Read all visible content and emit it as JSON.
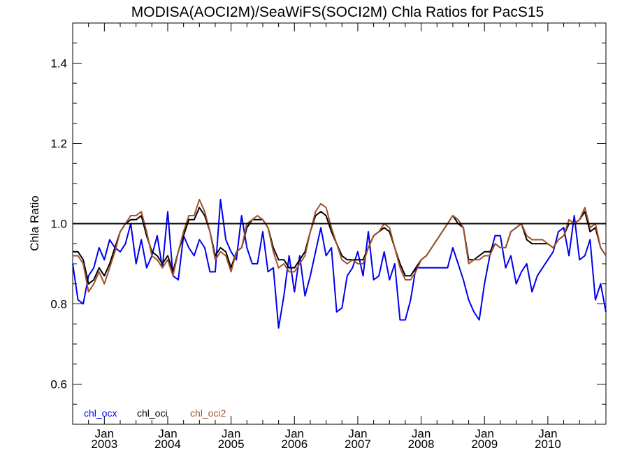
{
  "chart_data": {
    "type": "line",
    "title": "MODISA(AOCI2M)/SeaWiFS(SOCI2M)  Chla Ratios for PacS15",
    "xlabel": "",
    "ylabel": "Chla Ratio",
    "xlim": [
      "2002-07-01",
      "2010-12-01"
    ],
    "ylim": [
      0.5,
      1.5
    ],
    "yticks": [
      0.6,
      0.8,
      1.0,
      1.2,
      1.4
    ],
    "ytick_labels": [
      "0.6",
      "0.8",
      "1.0",
      "1.2",
      "1.4"
    ],
    "xtick_dates": [
      "2003-01-01",
      "2004-01-01",
      "2005-01-01",
      "2006-01-01",
      "2007-01-01",
      "2008-01-01",
      "2009-01-01",
      "2010-01-01"
    ],
    "xtick_labels_top": [
      "Jan",
      "Jan",
      "Jan",
      "Jan",
      "Jan",
      "Jan",
      "Jan",
      "Jan"
    ],
    "xtick_labels_bottom": [
      "2003",
      "2004",
      "2005",
      "2006",
      "2007",
      "2008",
      "2009",
      "2010"
    ],
    "reference_line": 1.0,
    "legend_position": "bottom-left",
    "x": [
      "2002-07",
      "2002-08",
      "2002-09",
      "2002-10",
      "2002-11",
      "2002-12",
      "2003-01",
      "2003-02",
      "2003-03",
      "2003-04",
      "2003-05",
      "2003-06",
      "2003-07",
      "2003-08",
      "2003-09",
      "2003-10",
      "2003-11",
      "2003-12",
      "2004-01",
      "2004-02",
      "2004-03",
      "2004-04",
      "2004-05",
      "2004-06",
      "2004-07",
      "2004-08",
      "2004-09",
      "2004-10",
      "2004-11",
      "2004-12",
      "2005-01",
      "2005-02",
      "2005-03",
      "2005-04",
      "2005-05",
      "2005-06",
      "2005-07",
      "2005-08",
      "2005-09",
      "2005-10",
      "2005-11",
      "2005-12",
      "2006-01",
      "2006-02",
      "2006-03",
      "2006-04",
      "2006-05",
      "2006-06",
      "2006-07",
      "2006-08",
      "2006-09",
      "2006-10",
      "2006-11",
      "2006-12",
      "2007-01",
      "2007-02",
      "2007-03",
      "2007-04",
      "2007-05",
      "2007-06",
      "2007-07",
      "2007-08",
      "2007-09",
      "2007-10",
      "2007-11",
      "2007-12",
      "2008-01",
      "2008-02",
      "2008-03",
      "2008-04",
      "2008-05",
      "2008-06",
      "2008-07",
      "2008-08",
      "2008-09",
      "2008-10",
      "2008-11",
      "2008-12",
      "2009-01",
      "2009-02",
      "2009-03",
      "2009-04",
      "2009-05",
      "2009-06",
      "2009-07",
      "2009-08",
      "2009-09",
      "2009-10",
      "2009-11",
      "2009-12",
      "2010-01",
      "2010-02",
      "2010-03",
      "2010-04",
      "2010-05",
      "2010-06",
      "2010-07",
      "2010-08",
      "2010-09",
      "2010-10",
      "2010-11",
      "2010-12"
    ],
    "series": [
      {
        "name": "chl_ocx",
        "color": "#0000ee",
        "values": [
          0.9,
          0.81,
          0.8,
          0.87,
          0.89,
          0.94,
          0.91,
          0.96,
          0.94,
          0.93,
          0.95,
          1.0,
          0.9,
          0.96,
          0.89,
          0.92,
          0.97,
          0.89,
          1.03,
          0.87,
          0.86,
          0.97,
          0.94,
          0.92,
          0.96,
          0.94,
          0.88,
          0.88,
          1.06,
          0.96,
          0.93,
          0.91,
          1.02,
          0.94,
          0.9,
          0.9,
          0.98,
          0.88,
          0.89,
          0.74,
          0.82,
          0.92,
          0.83,
          0.92,
          0.82,
          0.87,
          0.93,
          0.99,
          0.92,
          0.94,
          0.78,
          0.79,
          0.87,
          0.89,
          0.93,
          0.87,
          0.98,
          0.86,
          0.87,
          0.93,
          0.86,
          0.9,
          0.76,
          0.76,
          0.81,
          0.89,
          0.89,
          0.89,
          0.89,
          0.89,
          0.89,
          0.89,
          0.94,
          0.9,
          0.86,
          0.81,
          0.78,
          0.76,
          0.85,
          0.92,
          0.97,
          0.97,
          0.89,
          0.92,
          0.85,
          0.88,
          0.9,
          0.83,
          0.87,
          0.89,
          0.91,
          0.93,
          0.98,
          0.99,
          0.92,
          1.02,
          0.91,
          0.92,
          0.96,
          0.81,
          0.85,
          0.78
        ]
      },
      {
        "name": "chl_oci",
        "color": "#000000",
        "values": [
          0.93,
          0.93,
          0.91,
          0.85,
          0.86,
          0.89,
          0.87,
          0.9,
          0.94,
          0.98,
          1.0,
          1.01,
          1.01,
          1.02,
          0.97,
          0.93,
          0.92,
          0.9,
          0.92,
          0.88,
          0.93,
          0.97,
          1.01,
          1.01,
          1.04,
          1.02,
          0.98,
          0.92,
          0.94,
          0.93,
          0.89,
          0.93,
          0.94,
          0.99,
          1.01,
          1.01,
          1.01,
          0.99,
          0.94,
          0.91,
          0.91,
          0.89,
          0.89,
          0.91,
          0.93,
          0.98,
          1.02,
          1.03,
          1.02,
          0.98,
          0.95,
          0.92,
          0.91,
          0.91,
          0.91,
          0.91,
          0.94,
          0.97,
          0.98,
          0.99,
          0.98,
          0.94,
          0.9,
          0.87,
          0.87,
          0.89,
          0.91,
          0.92,
          0.94,
          0.96,
          0.98,
          1.0,
          1.02,
          1.0,
          0.99,
          0.91,
          0.91,
          0.92,
          0.93,
          0.93,
          0.95,
          0.94,
          0.94,
          0.98,
          0.99,
          1.0,
          0.96,
          0.95,
          0.95,
          0.95,
          0.95,
          0.94,
          0.96,
          0.97,
          1.0,
          1.0,
          1.01,
          1.03,
          0.98,
          0.99,
          0.94,
          0.92
        ]
      },
      {
        "name": "chl_oci2",
        "color": "#a0522d",
        "values": [
          0.92,
          0.92,
          0.9,
          0.83,
          0.85,
          0.88,
          0.85,
          0.89,
          0.93,
          0.98,
          1.0,
          1.02,
          1.02,
          1.03,
          0.98,
          0.92,
          0.91,
          0.89,
          0.91,
          0.87,
          0.93,
          0.98,
          1.02,
          1.02,
          1.06,
          1.03,
          0.98,
          0.91,
          0.93,
          0.92,
          0.88,
          0.93,
          0.94,
          1.0,
          1.01,
          1.02,
          1.01,
          0.99,
          0.93,
          0.89,
          0.9,
          0.88,
          0.88,
          0.9,
          0.92,
          0.98,
          1.03,
          1.05,
          1.04,
          0.99,
          0.95,
          0.91,
          0.9,
          0.91,
          0.9,
          0.9,
          0.94,
          0.97,
          0.98,
          1.0,
          0.99,
          0.94,
          0.89,
          0.86,
          0.86,
          0.88,
          0.91,
          0.92,
          0.94,
          0.96,
          0.98,
          1.0,
          1.02,
          1.01,
          0.99,
          0.9,
          0.91,
          0.91,
          0.92,
          0.92,
          0.95,
          0.94,
          0.94,
          0.98,
          0.99,
          1.0,
          0.97,
          0.96,
          0.96,
          0.96,
          0.95,
          0.94,
          0.96,
          0.97,
          1.01,
          1.0,
          1.01,
          1.04,
          0.99,
          1.0,
          0.94,
          0.92
        ]
      }
    ]
  }
}
